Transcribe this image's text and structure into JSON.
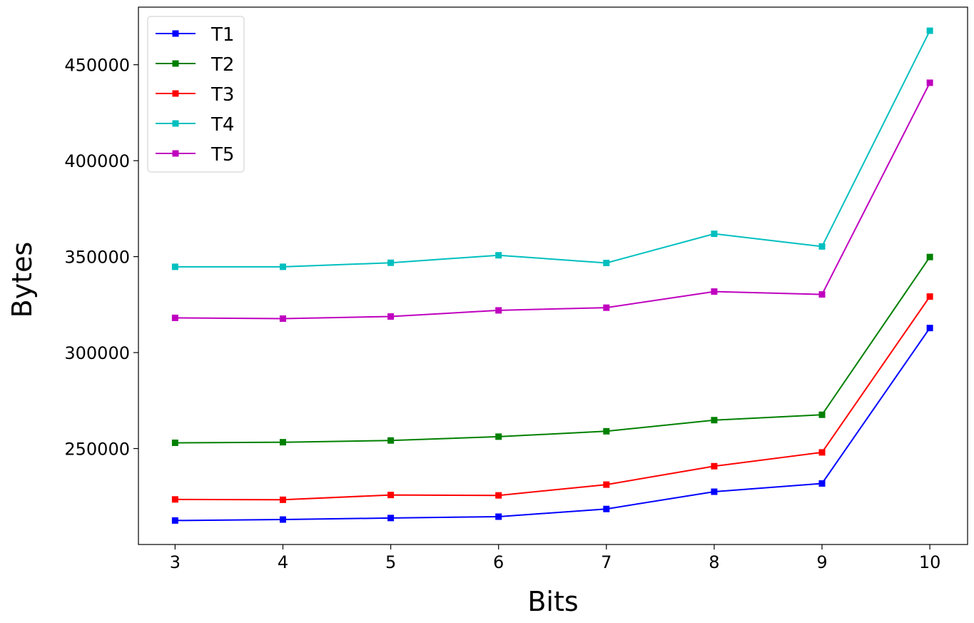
{
  "chart_data": {
    "type": "line",
    "title": "",
    "xlabel": "Bits",
    "ylabel": "Bytes",
    "x": [
      3,
      4,
      5,
      6,
      7,
      8,
      9,
      10
    ],
    "xticks": [
      "3",
      "4",
      "5",
      "6",
      "7",
      "8",
      "9",
      "10"
    ],
    "yticks": [
      250000,
      300000,
      350000,
      400000,
      450000
    ],
    "ytick_labels": [
      "250000",
      "300000",
      "350000",
      "400000",
      "450000"
    ],
    "xlim": [
      2.66,
      10.35
    ],
    "ylim": [
      200000,
      480000
    ],
    "grid": false,
    "legend_position": "top-left",
    "marker": "square",
    "series": [
      {
        "name": "T1",
        "color": "#0000ff",
        "values": [
          212500,
          213000,
          213800,
          214500,
          218500,
          227500,
          231800,
          312800
        ]
      },
      {
        "name": "T2",
        "color": "#008000",
        "values": [
          253000,
          253300,
          254200,
          256200,
          259000,
          264800,
          267600,
          349800
        ]
      },
      {
        "name": "T3",
        "color": "#ff0000",
        "values": [
          223500,
          223300,
          225800,
          225600,
          231200,
          240800,
          248000,
          329200
        ]
      },
      {
        "name": "T4",
        "color": "#00bfbf",
        "values": [
          344700,
          344700,
          346800,
          350700,
          346700,
          361900,
          355300,
          467700
        ]
      },
      {
        "name": "T5",
        "color": "#bf00bf",
        "values": [
          318100,
          317700,
          318800,
          322000,
          323400,
          331800,
          330300,
          440600
        ]
      }
    ]
  }
}
